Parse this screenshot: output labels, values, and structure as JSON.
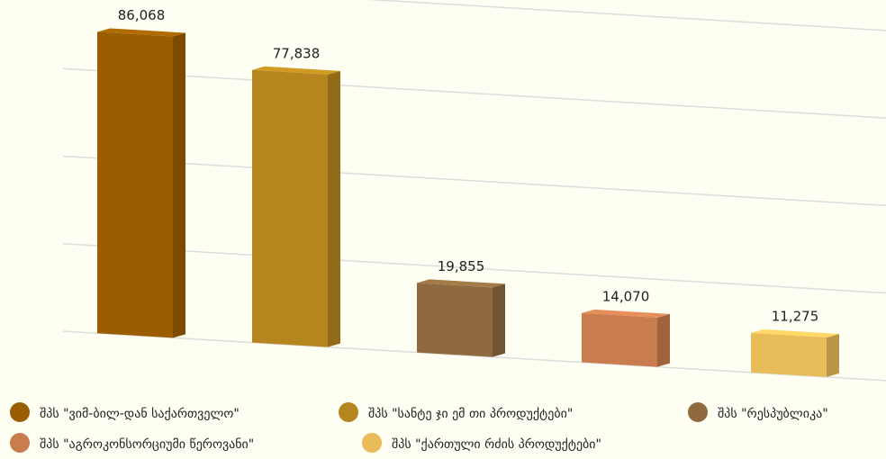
{
  "chart_data": {
    "type": "bar3d",
    "series": [
      {
        "name": "შპს \"ვიმ-ბილ-დან საქართველო\"",
        "color": "#9a5e00",
        "values": [
          86068
        ],
        "value_labels": [
          "86,068"
        ]
      },
      {
        "name": "შპს \"სანტე ჯი ემ თი პროდუქტები\"",
        "color": "#b5861e",
        "values": [
          77838
        ],
        "value_labels": [
          "77,838"
        ]
      },
      {
        "name": "შპს \"რესპუბლიკა\"",
        "color": "#8f6a3e",
        "values": [
          19855
        ],
        "value_labels": [
          "19,855"
        ]
      },
      {
        "name": "შპს \"აგროკონსორციუმი წეროვანი\"",
        "color": "#c97c4e",
        "values": [
          14070
        ],
        "value_labels": [
          "14,070"
        ]
      },
      {
        "name": "შპს \"ქართული რძის პროდუქტები\"",
        "color": "#e8bc58",
        "values": [
          11275
        ],
        "value_labels": [
          "11,275"
        ]
      }
    ],
    "ylim": [
      0,
      100000
    ],
    "yticks": [
      0,
      25000,
      50000,
      75000,
      100000
    ],
    "grid": true,
    "legend": "bottom"
  }
}
